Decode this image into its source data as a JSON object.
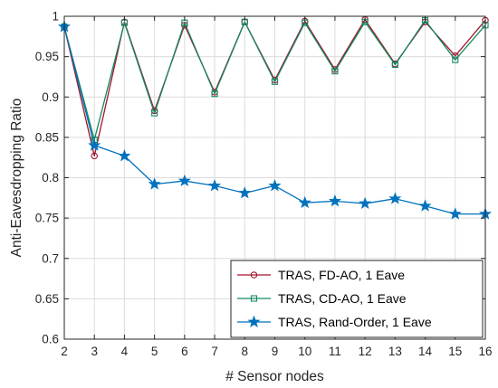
{
  "chart_data": {
    "type": "line",
    "title": "",
    "xlabel": "# Sensor nodes",
    "ylabel": "Anti-Eavesdropping Ratio",
    "xlim": [
      2,
      16
    ],
    "ylim": [
      0.6,
      1.0
    ],
    "xticks": [
      "2",
      "3",
      "4",
      "5",
      "6",
      "7",
      "8",
      "9",
      "10",
      "11",
      "12",
      "13",
      "14",
      "15",
      "16"
    ],
    "yticks": [
      "0.6",
      "0.65",
      "0.7",
      "0.75",
      "0.8",
      "0.85",
      "0.9",
      "0.95",
      "1"
    ],
    "grid": true,
    "legend_position": "bottom-right",
    "x": [
      2,
      3,
      4,
      5,
      6,
      7,
      8,
      9,
      10,
      11,
      12,
      13,
      14,
      15,
      16
    ],
    "series": [
      {
        "name": "TRAS, FD-AO, 1 Eave",
        "color": "#a2142f",
        "marker": "circle",
        "values": [
          0.987,
          0.827,
          0.993,
          0.883,
          0.989,
          0.906,
          0.993,
          0.921,
          0.994,
          0.934,
          0.996,
          0.941,
          0.993,
          0.951,
          0.995
        ]
      },
      {
        "name": "TRAS, CD-AO, 1 Eave",
        "color": "#128a5e",
        "marker": "square",
        "values": [
          0.987,
          0.847,
          0.992,
          0.88,
          0.992,
          0.904,
          0.993,
          0.919,
          0.992,
          0.932,
          0.993,
          0.94,
          0.995,
          0.946,
          0.989
        ]
      },
      {
        "name": "TRAS, Rand-Order, 1 Eave",
        "color": "#0072bd",
        "marker": "star",
        "values": [
          0.987,
          0.84,
          0.827,
          0.792,
          0.796,
          0.79,
          0.781,
          0.79,
          0.769,
          0.771,
          0.768,
          0.774,
          0.765,
          0.755,
          0.755
        ]
      }
    ]
  }
}
